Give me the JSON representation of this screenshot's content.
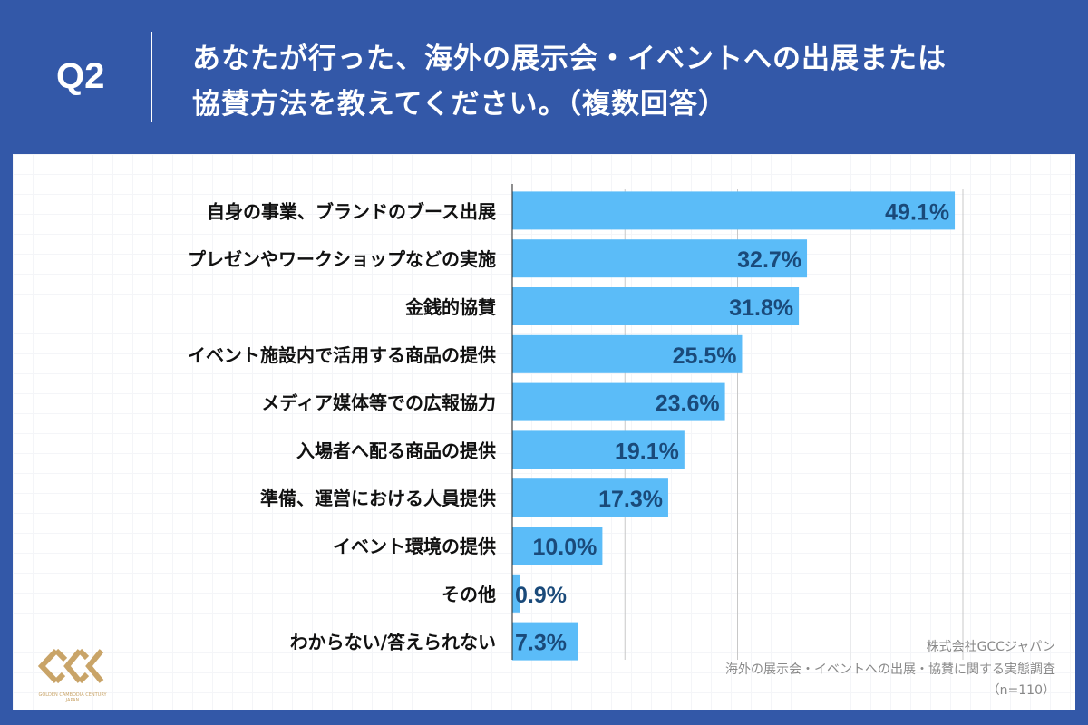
{
  "header": {
    "question_number": "Q2",
    "title_line1": "あなたが行った、海外の展示会・イベントへの出展または",
    "title_line2": "協賛方法を教えてください。（複数回答）"
  },
  "source": {
    "company": "株式会社GCCジャパン",
    "survey": "海外の展示会・イベントへの出展・協賛に関する実態調査",
    "sample": "（n=110）"
  },
  "logo": {
    "text": "GCC",
    "subtext": "GOLDEN CAMBODIA CENTURY JAPAN",
    "color": "#c9a468"
  },
  "colors": {
    "background": "#3358a8",
    "bar": "#5bbcf8",
    "value_label": "#1a4a7a"
  },
  "chart_data": {
    "type": "bar",
    "orientation": "horizontal",
    "unit": "%",
    "xlim": [
      0,
      50
    ],
    "grid": true,
    "categories": [
      "自身の事業、ブランドのブース出展",
      "プレゼンやワークショップなどの実施",
      "金銭的協賛",
      "イベント施設内で活用する商品の提供",
      "メディア媒体等での広報協力",
      "入場者へ配る商品の提供",
      "準備、運営における人員提供",
      "イベント環境の提供",
      "その他",
      "わからない/答えられない"
    ],
    "values": [
      49.1,
      32.7,
      31.8,
      25.5,
      23.6,
      19.1,
      17.3,
      10.0,
      0.9,
      7.3
    ],
    "value_labels": [
      "49.1%",
      "32.7%",
      "31.8%",
      "25.5%",
      "23.6%",
      "19.1%",
      "17.3%",
      "10.0%",
      "0.9%",
      "7.3%"
    ]
  }
}
